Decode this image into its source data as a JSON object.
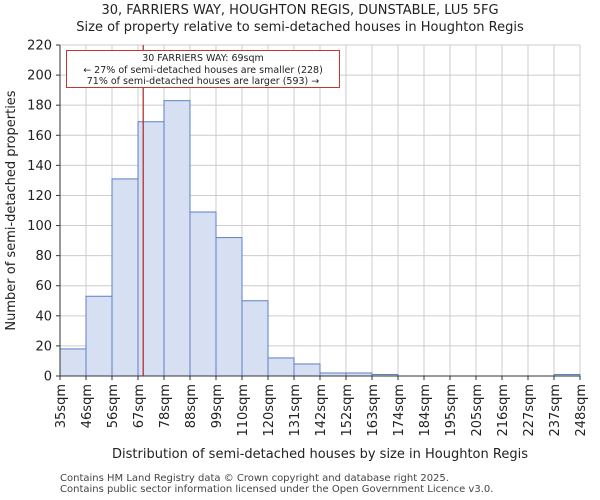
{
  "title_line1": "30, FARRIERS WAY, HOUGHTON REGIS, DUNSTABLE, LU5 5FG",
  "title_line2": "Size of property relative to semi-detached houses in Houghton Regis",
  "footer_line1": "Contains HM Land Registry data © Crown copyright and database right 2025.",
  "footer_line2": "Contains public sector information licensed under the Open Government Licence v3.0.",
  "annotation": {
    "line1": "30 FARRIERS WAY: 69sqm",
    "line2": "← 27% of semi-detached houses are smaller (228)",
    "line3": "71% of semi-detached houses are larger (593) →",
    "marker_bin_position": 3.2
  },
  "colors": {
    "bar_fill": "#d6e0f2",
    "bar_edge": "#5b7fc4",
    "marker": "#b22222",
    "grid": "#cccccc"
  },
  "chart_data": {
    "type": "bar",
    "title": "Size of property relative to semi-detached houses in Houghton Regis",
    "xlabel": "Distribution of semi-detached houses by size in Houghton Regis",
    "ylabel": "Number of semi-detached properties",
    "ylim": [
      0,
      220
    ],
    "yticks": [
      0,
      20,
      40,
      60,
      80,
      100,
      120,
      140,
      160,
      180,
      200,
      220
    ],
    "tick_labels": [
      "35sqm",
      "46sqm",
      "56sqm",
      "67sqm",
      "78sqm",
      "88sqm",
      "99sqm",
      "110sqm",
      "120sqm",
      "131sqm",
      "142sqm",
      "152sqm",
      "163sqm",
      "174sqm",
      "184sqm",
      "195sqm",
      "205sqm",
      "216sqm",
      "227sqm",
      "237sqm",
      "248sqm"
    ],
    "values": [
      18,
      53,
      131,
      169,
      183,
      109,
      92,
      50,
      12,
      8,
      2,
      2,
      1,
      0,
      0,
      0,
      0,
      0,
      0,
      1
    ],
    "grid": true
  }
}
